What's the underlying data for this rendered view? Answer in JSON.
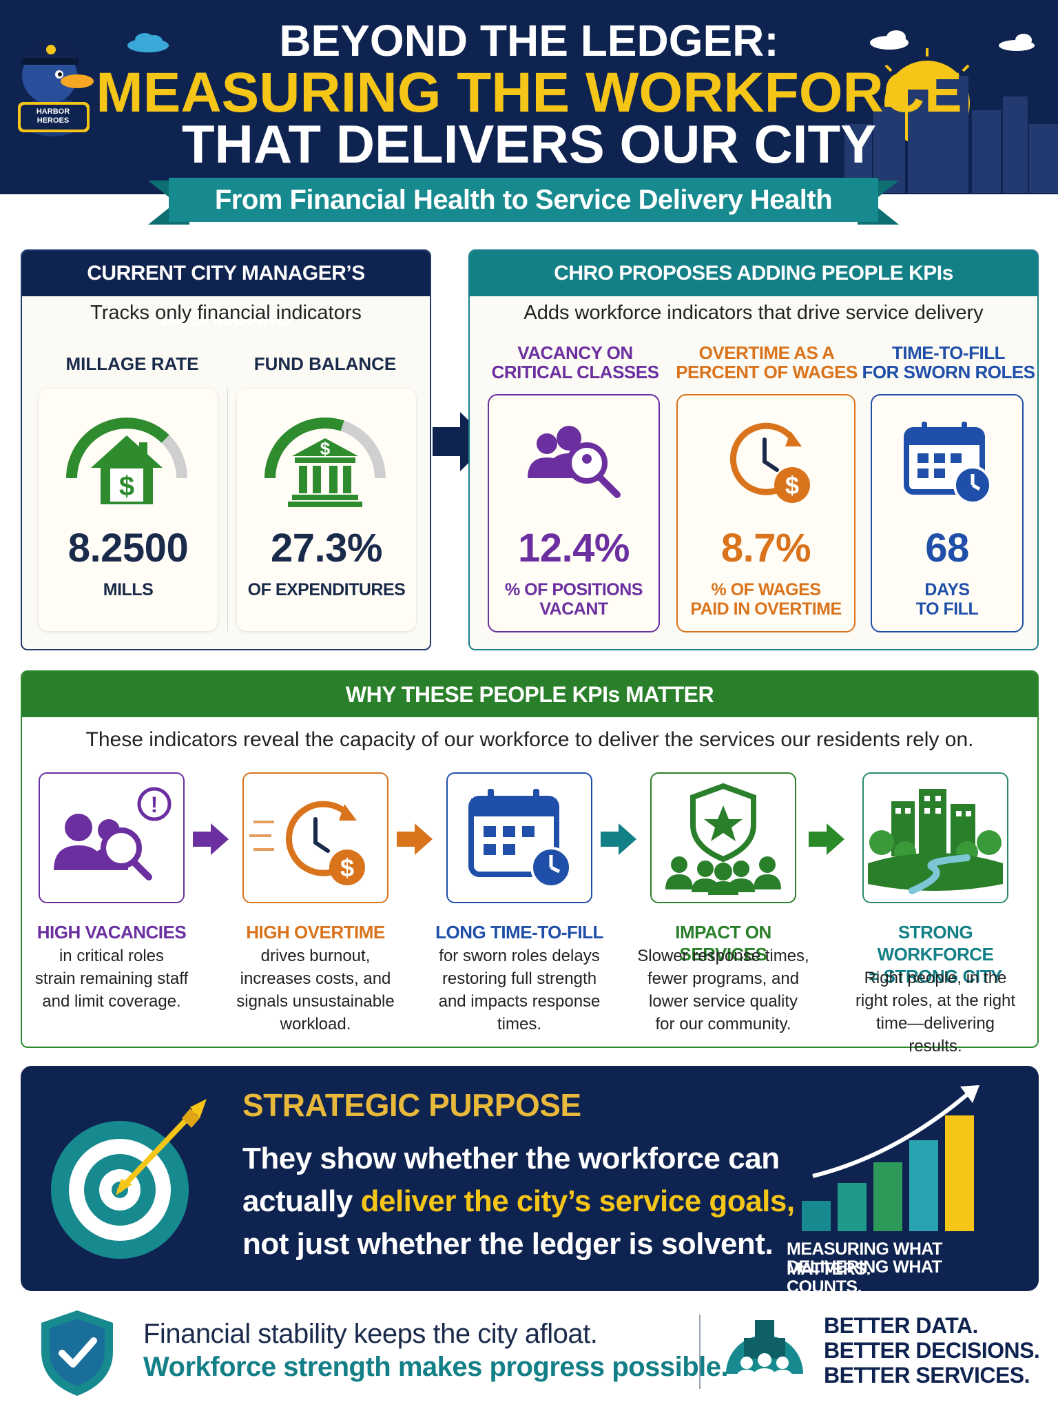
{
  "header": {
    "title_line1": "BEYOND THE LEDGER:",
    "title_line2": "MEASURING THE WORKFORCE",
    "title_line3": "THAT DELIVERS OUR CITY",
    "mascot_text": "HARBOR HEROES",
    "ribbon": "From Financial Health to Service Delivery Health"
  },
  "current_dashboard": {
    "heading": "CURRENT CITY MANAGER’S DASHBOARD",
    "subheading": "Tracks only financial indicators",
    "kpis": [
      {
        "label": "MILLAGE RATE",
        "value": "8.2500",
        "unit": "MILLS",
        "icon": "house-dollar-icon",
        "gauge_fraction": 0.75
      },
      {
        "label": "FUND BALANCE",
        "value": "27.3%",
        "unit": "OF EXPENDITURES",
        "icon": "bank-dollar-icon",
        "gauge_fraction": 0.6
      }
    ]
  },
  "proposed_kpis": {
    "heading": "CHRO PROPOSES ADDING PEOPLE KPIs",
    "subheading": "Adds workforce indicators that drive service delivery",
    "kpis": [
      {
        "label1": "VACANCY ON",
        "label2": "CRITICAL CLASSES",
        "value": "12.4%",
        "unit1": "% OF POSITIONS",
        "unit2": "VACANT",
        "icon": "people-magnifier-icon",
        "color": "#6b2fa0"
      },
      {
        "label1": "OVERTIME AS A",
        "label2": "PERCENT OF WAGES",
        "value": "8.7%",
        "unit1": "% OF WAGES",
        "unit2": "PAID IN OVERTIME",
        "icon": "clock-dollar-icon",
        "color": "#d9731c"
      },
      {
        "label1": "TIME-TO-FILL",
        "label2": "FOR SWORN ROLES",
        "value": "68",
        "unit1": "DAYS",
        "unit2": "TO FILL",
        "icon": "calendar-clock-icon",
        "color": "#1f4fa8"
      }
    ]
  },
  "why": {
    "heading": "WHY THESE PEOPLE KPIs MATTER",
    "subheading": "These indicators reveal the capacity of our workforce to deliver the services our residents rely on.",
    "items": [
      {
        "title1": "HIGH VACANCIES",
        "title2": "",
        "body": [
          "in critical roles",
          "strain remaining staff",
          "and limit coverage."
        ],
        "color": "#6b2fa0",
        "icon": "people-alert-icon"
      },
      {
        "title1": "HIGH OVERTIME",
        "title2": "",
        "body": [
          "drives burnout,",
          "increases costs, and",
          "signals unsustainable",
          "workload."
        ],
        "color": "#d9731c",
        "icon": "clock-dollar-icon"
      },
      {
        "title1": "LONG TIME-TO-FILL",
        "title2": "",
        "body": [
          "for sworn roles delays",
          "restoring full strength",
          "and impacts response",
          "times."
        ],
        "color": "#1f4fa8",
        "icon": "calendar-clock-icon"
      },
      {
        "title1": "IMPACT ON SERVICES",
        "title2": "",
        "body": [
          "Slower response times,",
          "fewer programs, and",
          "lower service quality",
          "for our community."
        ],
        "color": "#2a7f2a",
        "icon": "shield-community-icon"
      },
      {
        "title1": "STRONG WORKFORCE",
        "title2": "= STRONG CITY",
        "body": [
          "Right people, in the",
          "right roles, at the right",
          "time—delivering results."
        ],
        "color": "#137f86",
        "icon": "city-park-icon"
      }
    ]
  },
  "strategic": {
    "title": "STRATEGIC PURPOSE",
    "line1": "They show whether the workforce can",
    "line2_pre": "actually ",
    "line2_highlight": "deliver the city’s service goals,",
    "line3": "not just whether the ledger is solvent.",
    "tag1": "MEASURING WHAT MATTERS.",
    "tag2": "DELIVERING WHAT COUNTS."
  },
  "footer": {
    "line1": "Financial stability keeps the city afloat.",
    "line2": "Workforce strength makes progress possible.",
    "right1": "BETTER DATA.",
    "right2": "BETTER DECISIONS.",
    "right3": "BETTER SERVICES."
  },
  "colors": {
    "navy": "#0f2350",
    "gold": "#f5c518",
    "teal": "#137f86",
    "green": "#2a7f2a",
    "purple": "#6b2fa0",
    "orange": "#d9731c",
    "blue": "#1f4fa8"
  }
}
